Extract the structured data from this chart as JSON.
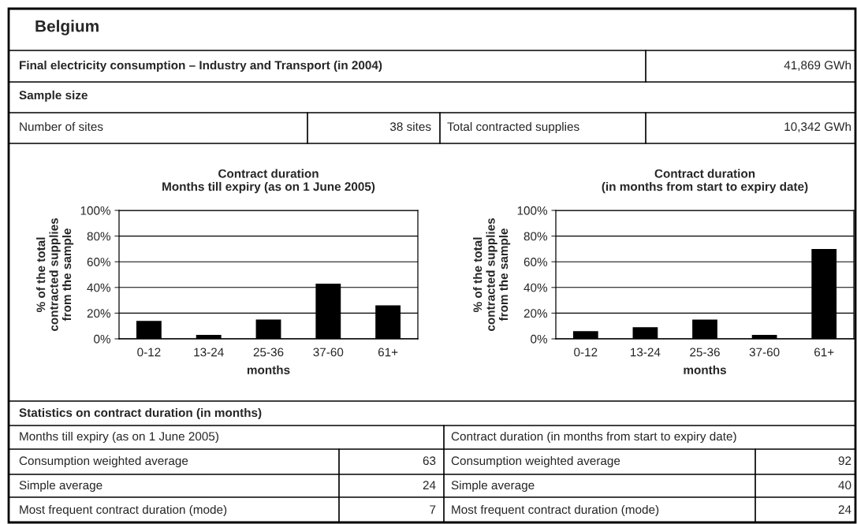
{
  "chart_data": [
    {
      "type": "other",
      "title": "Belgium",
      "annotations": [
        "Final electricity consumption – Industry and Transport (in 2004)",
        "41,869 GWh",
        "Sample size",
        "Number of sites",
        "38 sites",
        "Total contracted supplies",
        "10,342 GWh"
      ]
    },
    {
      "type": "bar",
      "title": "Contract duration\nMonths till expiry (as on 1 June 2005)",
      "ylabel": "% of the total\ncontracted supplies\nfrom the sample",
      "xlabel": "months",
      "categories": [
        "0-12",
        "13-24",
        "25-36",
        "37-60",
        "61+"
      ],
      "values": [
        14,
        3,
        15,
        43,
        26
      ],
      "color": "#000000",
      "ylim": [
        0,
        100
      ],
      "yticks": [
        {
          "value": 0,
          "label": "0%"
        },
        {
          "value": 20,
          "label": "20%"
        },
        {
          "value": 40,
          "label": "40%"
        },
        {
          "value": 60,
          "label": "60%"
        },
        {
          "value": 80,
          "label": "80%"
        },
        {
          "value": 100,
          "label": "100%"
        }
      ],
      "grid": "y"
    },
    {
      "type": "bar",
      "title": "Contract duration\n(in months from start to expiry date)",
      "ylabel": "% of the total\ncontracted supplies\nfrom the sample",
      "xlabel": "months",
      "categories": [
        "0-12",
        "13-24",
        "25-36",
        "37-60",
        "61+"
      ],
      "values": [
        6,
        9,
        15,
        3,
        70
      ],
      "color": "#000000",
      "ylim": [
        0,
        100
      ],
      "yticks": [
        {
          "value": 0,
          "label": "0%"
        },
        {
          "value": 20,
          "label": "20%"
        },
        {
          "value": 40,
          "label": "40%"
        },
        {
          "value": 60,
          "label": "60%"
        },
        {
          "value": 80,
          "label": "80%"
        },
        {
          "value": 100,
          "label": "100%"
        }
      ],
      "grid": "y"
    },
    {
      "type": "other",
      "title": "Statistics on contract duration (in months)",
      "annotations": [
        "Months till expiry (as on 1 June 2005)",
        "Contract duration (in months from start to expiry date)",
        "Consumption weighted average",
        "63",
        "Consumption weighted average",
        "92",
        "Simple average",
        "24",
        "Simple average",
        "40",
        "Most frequent contract duration (mode)",
        "7",
        "Most frequent contract duration (mode)",
        "24"
      ]
    }
  ]
}
